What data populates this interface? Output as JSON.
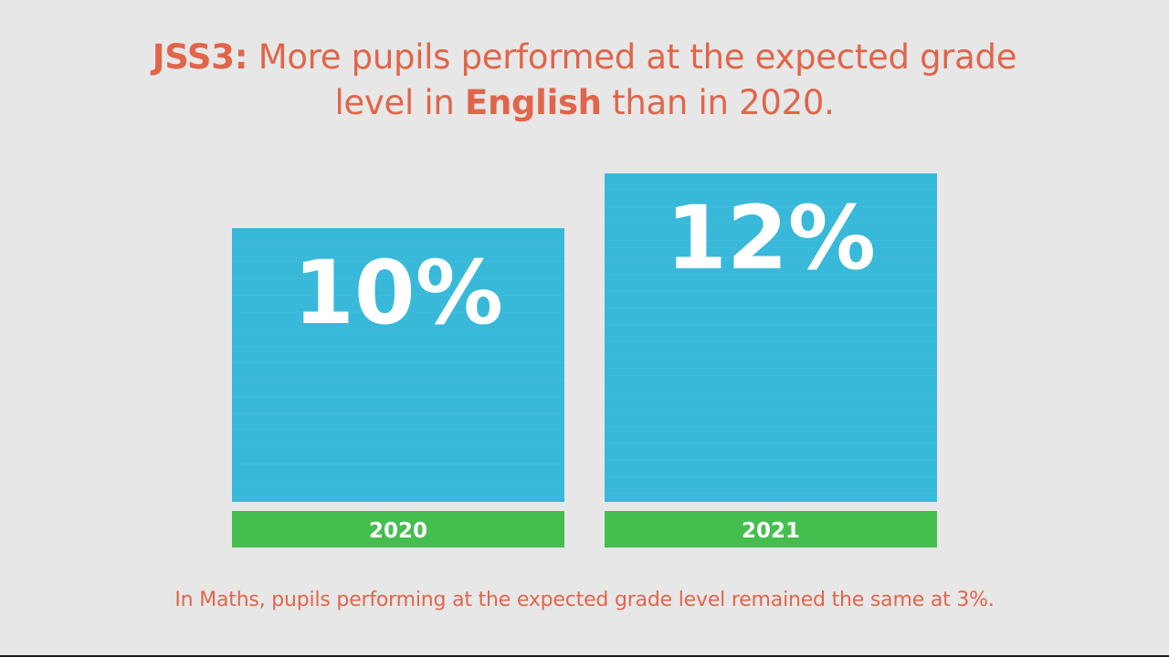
{
  "slide": {
    "title_prefix": "JSS3:",
    "title_mid": " More pupils performed at the expected grade level in ",
    "title_emph": "English",
    "title_suffix": " than in 2020.",
    "footnote": "In Maths, pupils performing at the expected grade level remained the same at 3%."
  },
  "colors": {
    "background": "#e7e7e7",
    "accent_text": "#e0654a",
    "bar": "#39b9d9",
    "label_band": "#45be4f",
    "bar_text": "#ffffff"
  },
  "chart_data": {
    "type": "bar",
    "categories": [
      "2020",
      "2021"
    ],
    "values": [
      10,
      12
    ],
    "value_labels": [
      "10%",
      "12%"
    ],
    "ylim": [
      0,
      12
    ],
    "grid": false,
    "legend": "none"
  }
}
